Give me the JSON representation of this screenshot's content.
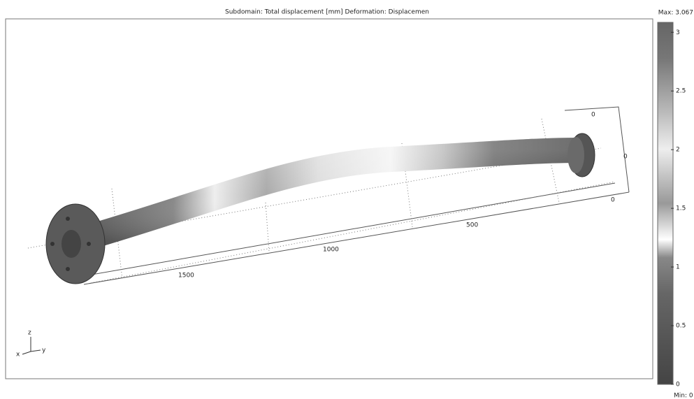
{
  "title": "Subdomain: Total displacement [mm]   Deformation: Displacemen",
  "colorbar": {
    "max_label": "Max: 3.067",
    "min_label": "Min: 0",
    "lim": [
      0,
      3.067
    ],
    "ticks": [
      0,
      0.5,
      1,
      1.5,
      2,
      2.5,
      3
    ]
  },
  "box_labels": [
    "1500",
    "1000",
    "500",
    "0",
    "0",
    "0"
  ],
  "triad": {
    "z": "z",
    "y": "y",
    "x": "x"
  }
}
